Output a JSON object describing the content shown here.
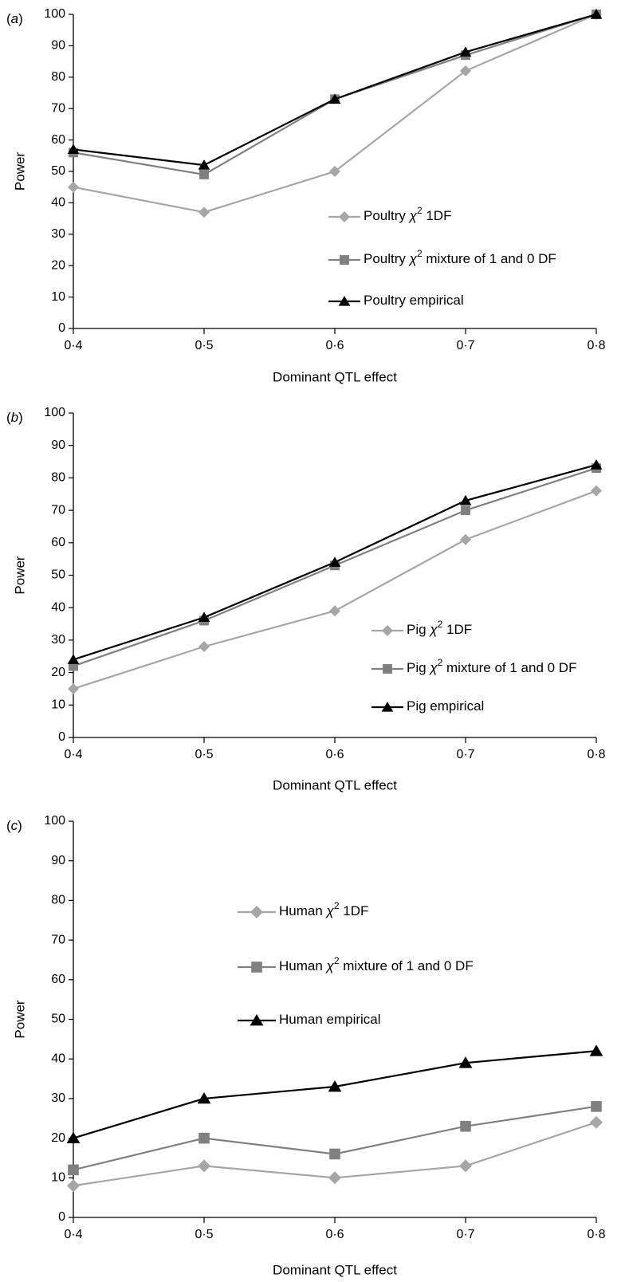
{
  "chart_data": [
    {
      "type": "line",
      "panel_label": "a",
      "xlabel": "Dominant QTL effect",
      "ylabel": "Power",
      "categories": [
        "0·4",
        "0·5",
        "0·6",
        "0·7",
        "0·8"
      ],
      "ylim": [
        0,
        100
      ],
      "yticks": [
        0,
        10,
        20,
        30,
        40,
        50,
        60,
        70,
        80,
        90,
        100
      ],
      "grid": false,
      "legend_position": "center-right",
      "series": [
        {
          "name": "Poultry χ² 1DF",
          "label_main": "Poultry",
          "label_symbol": "χ",
          "label_sup": "2",
          "label_tail": " 1DF",
          "marker": "diamond",
          "color": "#a6a6a6",
          "values": [
            45,
            37,
            50,
            82,
            100
          ]
        },
        {
          "name": "Poultry χ² mixture of 1 and 0 DF",
          "label_main": "Poultry",
          "label_symbol": "χ",
          "label_sup": "2",
          "label_tail": " mixture of 1 and 0 DF",
          "marker": "square",
          "color": "#808080",
          "values": [
            56,
            49,
            73,
            87,
            100
          ]
        },
        {
          "name": "Poultry empirical",
          "label_main": "Poultry empirical",
          "label_symbol": "",
          "label_sup": "",
          "label_tail": "",
          "marker": "triangle",
          "color": "#000000",
          "values": [
            57,
            52,
            73,
            88,
            100
          ]
        }
      ]
    },
    {
      "type": "line",
      "panel_label": "b",
      "xlabel": "Dominant QTL effect",
      "ylabel": "Power",
      "categories": [
        "0·4",
        "0·5",
        "0·6",
        "0·7",
        "0·8"
      ],
      "ylim": [
        0,
        100
      ],
      "yticks": [
        0,
        10,
        20,
        30,
        40,
        50,
        60,
        70,
        80,
        90,
        100
      ],
      "grid": false,
      "legend_position": "center-right",
      "series": [
        {
          "name": "Pig χ² 1DF",
          "label_main": "Pig",
          "label_symbol": "χ",
          "label_sup": "2",
          "label_tail": " 1DF",
          "marker": "diamond",
          "color": "#a6a6a6",
          "values": [
            15,
            28,
            39,
            61,
            76
          ]
        },
        {
          "name": "Pig χ² mixture of 1 and 0 DF",
          "label_main": "Pig",
          "label_symbol": "χ",
          "label_sup": "2",
          "label_tail": " mixture of 1 and 0 DF",
          "marker": "square",
          "color": "#808080",
          "values": [
            22,
            36,
            53,
            70,
            83
          ]
        },
        {
          "name": "Pig empirical",
          "label_main": "Pig empirical",
          "label_symbol": "",
          "label_sup": "",
          "label_tail": "",
          "marker": "triangle",
          "color": "#000000",
          "values": [
            24,
            37,
            54,
            73,
            84
          ]
        }
      ]
    },
    {
      "type": "line",
      "panel_label": "c",
      "xlabel": "Dominant QTL effect",
      "ylabel": "Power",
      "categories": [
        "0·4",
        "0·5",
        "0·6",
        "0·7",
        "0·8"
      ],
      "ylim": [
        0,
        100
      ],
      "yticks": [
        0,
        10,
        20,
        30,
        40,
        50,
        60,
        70,
        80,
        90,
        100
      ],
      "grid": false,
      "legend_position": "upper-center",
      "series": [
        {
          "name": "Human χ² 1DF",
          "label_main": "Human",
          "label_symbol": "χ",
          "label_sup": "2",
          "label_tail": " 1DF",
          "marker": "diamond",
          "color": "#a6a6a6",
          "values": [
            8,
            13,
            10,
            13,
            24
          ]
        },
        {
          "name": "Human χ² mixture of 1 and 0 DF",
          "label_main": "Human",
          "label_symbol": "χ",
          "label_sup": "2",
          "label_tail": " mixture of 1 and 0 DF",
          "marker": "square",
          "color": "#808080",
          "values": [
            12,
            20,
            16,
            23,
            28
          ]
        },
        {
          "name": "Human empirical",
          "label_main": "Human empirical",
          "label_symbol": "",
          "label_sup": "",
          "label_tail": "",
          "marker": "triangle",
          "color": "#000000",
          "values": [
            20,
            30,
            33,
            39,
            42
          ]
        }
      ]
    }
  ]
}
